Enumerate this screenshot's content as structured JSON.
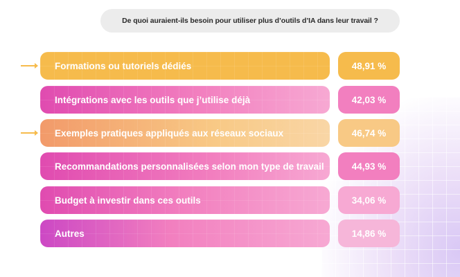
{
  "question": "De quoi auraient-ils besoin pour utiliser plus d’outils d’IA dans leur travail ?",
  "colors": {
    "orange": "#f6bb4c",
    "orange_light": "#f8c985",
    "pink": "#f27fbf",
    "pink_light": "#f7a9d3",
    "magenta": "#e04bb0",
    "violet": "#cc48c4"
  },
  "chart_data": {
    "type": "bar",
    "title": "De quoi auraient-ils besoin pour utiliser plus d’outils d’IA dans leur travail ?",
    "categories": [
      "Formations ou tutoriels dédiés",
      "Intégrations avec les outils que j’utilise déjà",
      "Exemples pratiques appliqués aux réseaux sociaux",
      "Recommandations personnalisées selon mon type de travail",
      "Budget à investir dans ces outils",
      "Autres"
    ],
    "values": [
      48.91,
      42.03,
      46.74,
      44.93,
      34.06,
      14.86
    ],
    "value_labels": [
      "48,91 %",
      "42,03 %",
      "46,74 %",
      "44,93 %",
      "34,06 %",
      "14,86 %"
    ],
    "highlighted": [
      "arrow-icon",
      "",
      "arrow-icon",
      "",
      "",
      ""
    ],
    "unit": "%"
  }
}
